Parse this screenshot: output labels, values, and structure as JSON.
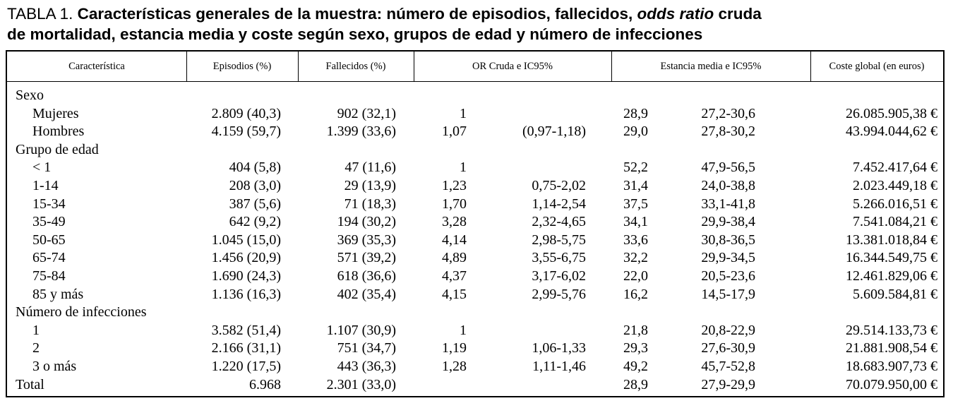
{
  "caption": {
    "label": "TABLA 1.",
    "title_line1_a": "Características generales de la muestra: número de episodios, fallecidos,",
    "title_line1_italic": "odds ratio",
    "title_line1_b": "cruda",
    "title_line2": "de mortalidad, estancia media y coste según sexo, grupos de edad y número de infecciones"
  },
  "headers": {
    "caracteristica": "Característica",
    "episodios": "Episodios (%)",
    "fallecidos": "Fallecidos (%)",
    "or": "OR Cruda e IC95%",
    "estancia": "Estancia media e IC95%",
    "coste": "Coste global (en euros)"
  },
  "rows": [
    {
      "label": "Sexo",
      "episodios": "",
      "fallecidos": "",
      "or": "",
      "or_ci": "",
      "estancia": "",
      "estancia_ci": "",
      "coste": ""
    },
    {
      "label": "Mujeres",
      "episodios": "2.809 (40,3)",
      "fallecidos": "902 (32,1)",
      "or": "1",
      "or_ci": "",
      "estancia": "28,9",
      "estancia_ci": "27,2-30,6",
      "coste": "26.085.905,38 €"
    },
    {
      "label": "Hombres",
      "episodios": "4.159 (59,7)",
      "fallecidos": "1.399 (33,6)",
      "or": "1,07",
      "or_ci": "(0,97-1,18)",
      "estancia": "29,0",
      "estancia_ci": "27,8-30,2",
      "coste": "43.994.044,62 €"
    },
    {
      "label": "Grupo de edad",
      "episodios": "",
      "fallecidos": "",
      "or": "",
      "or_ci": "",
      "estancia": "",
      "estancia_ci": "",
      "coste": ""
    },
    {
      "label": "< 1",
      "episodios": "404 (5,8)",
      "fallecidos": "47 (11,6)",
      "or": "1",
      "or_ci": "",
      "estancia": "52,2",
      "estancia_ci": "47,9-56,5",
      "coste": "7.452.417,64 €"
    },
    {
      "label": "1-14",
      "episodios": "208 (3,0)",
      "fallecidos": "29 (13,9)",
      "or": "1,23",
      "or_ci": "0,75-2,02",
      "estancia": "31,4",
      "estancia_ci": "24,0-38,8",
      "coste": "2.023.449,18 €"
    },
    {
      "label": "15-34",
      "episodios": "387 (5,6)",
      "fallecidos": "71 (18,3)",
      "or": "1,70",
      "or_ci": "1,14-2,54",
      "estancia": "37,5",
      "estancia_ci": "33,1-41,8",
      "coste": "5.266.016,51 €"
    },
    {
      "label": "35-49",
      "episodios": "642 (9,2)",
      "fallecidos": "194 (30,2)",
      "or": "3,28",
      "or_ci": "2,32-4,65",
      "estancia": "34,1",
      "estancia_ci": "29,9-38,4",
      "coste": "7.541.084,21 €"
    },
    {
      "label": "50-65",
      "episodios": "1.045 (15,0)",
      "fallecidos": "369 (35,3)",
      "or": "4,14",
      "or_ci": "2,98-5,75",
      "estancia": "33,6",
      "estancia_ci": "30,8-36,5",
      "coste": "13.381.018,84 €"
    },
    {
      "label": "65-74",
      "episodios": "1.456 (20,9)",
      "fallecidos": "571 (39,2)",
      "or": "4,89",
      "or_ci": "3,55-6,75",
      "estancia": "32,2",
      "estancia_ci": "29,9-34,5",
      "coste": "16.344.549,75 €"
    },
    {
      "label": "75-84",
      "episodios": "1.690 (24,3)",
      "fallecidos": "618 (36,6)",
      "or": "4,37",
      "or_ci": "3,17-6,02",
      "estancia": "22,0",
      "estancia_ci": "20,5-23,6",
      "coste": "12.461.829,06 €"
    },
    {
      "label": "85 y más",
      "episodios": "1.136 (16,3)",
      "fallecidos": "402 (35,4)",
      "or": "4,15",
      "or_ci": "2,99-5,76",
      "estancia": "16,2",
      "estancia_ci": "14,5-17,9",
      "coste": "5.609.584,81 €"
    },
    {
      "label": "Número de infecciones",
      "episodios": "",
      "fallecidos": "",
      "or": "",
      "or_ci": "",
      "estancia": "",
      "estancia_ci": "",
      "coste": ""
    },
    {
      "label": "1",
      "episodios": "3.582 (51,4)",
      "fallecidos": "1.107 (30,9)",
      "or": "1",
      "or_ci": "",
      "estancia": "21,8",
      "estancia_ci": "20,8-22,9",
      "coste": "29.514.133,73 €"
    },
    {
      "label": "2",
      "episodios": "2.166 (31,1)",
      "fallecidos": "751 (34,7)",
      "or": "1,19",
      "or_ci": "1,06-1,33",
      "estancia": "29,3",
      "estancia_ci": "27,6-30,9",
      "coste": "21.881.908,54 €"
    },
    {
      "label": "3 o más",
      "episodios": "1.220 (17,5)",
      "fallecidos": "443 (36,3)",
      "or": "1,28",
      "or_ci": "1,11-1,46",
      "estancia": "49,2",
      "estancia_ci": "45,7-52,8",
      "coste": "18.683.907,73 €"
    },
    {
      "label": "Total",
      "episodios": "6.968",
      "fallecidos": "2.301 (33,0)",
      "or": "",
      "or_ci": "",
      "estancia": "28,9",
      "estancia_ci": "27,9-29,9",
      "coste": "70.079.950,00 €"
    }
  ]
}
